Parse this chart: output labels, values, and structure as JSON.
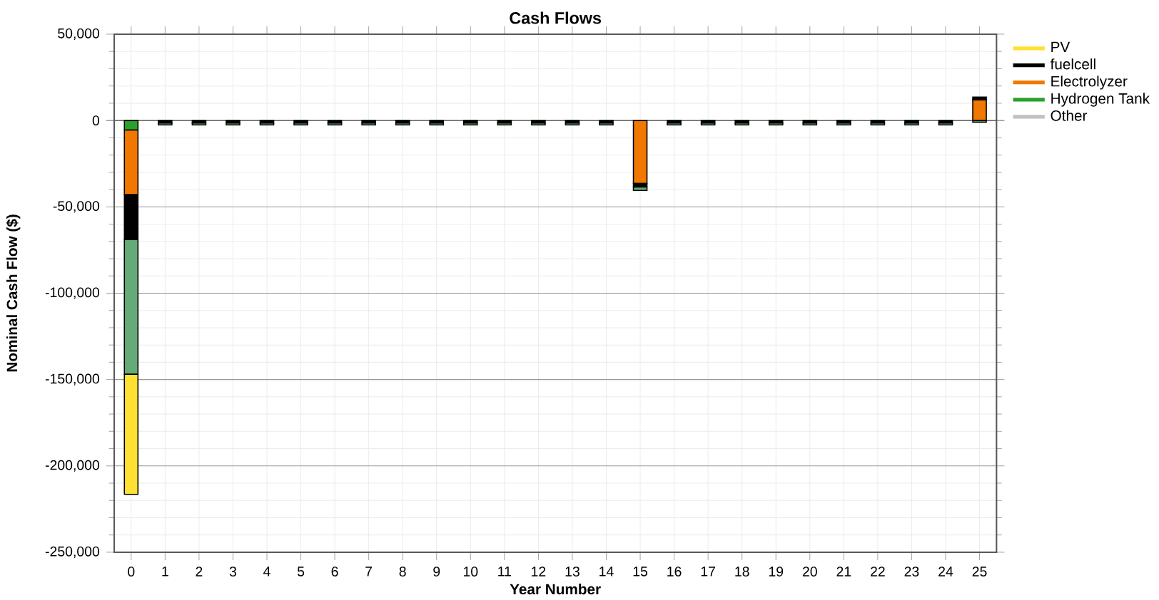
{
  "chart_data": {
    "type": "bar",
    "stacked": true,
    "title": "Cash Flows",
    "xlabel": "Year Number",
    "ylabel": "Nominal Cash Flow ($)",
    "categories": [
      "0",
      "1",
      "2",
      "3",
      "4",
      "5",
      "6",
      "7",
      "8",
      "9",
      "10",
      "11",
      "12",
      "13",
      "14",
      "15",
      "16",
      "17",
      "18",
      "19",
      "20",
      "21",
      "22",
      "23",
      "24",
      "25"
    ],
    "series": [
      {
        "name": "Other",
        "color": "#c0c0c0",
        "values": [
          0,
          0,
          0,
          0,
          0,
          0,
          0,
          0,
          0,
          0,
          0,
          0,
          0,
          0,
          0,
          0,
          0,
          0,
          0,
          0,
          0,
          0,
          0,
          0,
          0,
          0
        ]
      },
      {
        "name": "Hydrogen Tank",
        "color": "#2ca02c",
        "values": [
          -5500,
          0,
          0,
          0,
          0,
          0,
          0,
          0,
          0,
          0,
          0,
          0,
          0,
          0,
          0,
          0,
          0,
          0,
          0,
          0,
          0,
          0,
          0,
          0,
          0,
          0
        ]
      },
      {
        "name": "Electrolyzer",
        "color": "#f07800",
        "values": [
          -37500,
          0,
          0,
          0,
          0,
          0,
          0,
          0,
          0,
          0,
          0,
          0,
          0,
          0,
          0,
          -36500,
          0,
          0,
          0,
          0,
          0,
          0,
          0,
          0,
          0,
          12000
        ]
      },
      {
        "name": "fuelcell",
        "color": "#000000",
        "values": [
          -26000,
          -1500,
          -1500,
          -1500,
          -1500,
          -1500,
          -1500,
          -1500,
          -1500,
          -1500,
          -1500,
          -1500,
          -1500,
          -1500,
          -1500,
          -2000,
          -1500,
          -1500,
          -1500,
          -1500,
          -1500,
          -1500,
          -1500,
          -1500,
          -1500,
          1500
        ]
      },
      {
        "name": null,
        "color": "#66aa77",
        "values": [
          -78000,
          -1000,
          -1000,
          -1000,
          -1000,
          -1000,
          -1000,
          -1000,
          -1000,
          -1000,
          -1000,
          -1000,
          -1000,
          -1000,
          -1000,
          -2000,
          -1000,
          -1000,
          -1000,
          -1000,
          -1000,
          -1000,
          -1000,
          -1000,
          -1000,
          -1000
        ]
      },
      {
        "name": "PV",
        "color": "#ffe033",
        "values": [
          -69500,
          0,
          0,
          0,
          0,
          0,
          0,
          0,
          0,
          0,
          0,
          0,
          0,
          0,
          0,
          0,
          0,
          0,
          0,
          0,
          0,
          0,
          0,
          0,
          0,
          0
        ]
      }
    ],
    "ylim": [
      -250000,
      50000
    ],
    "yticks": [
      {
        "value": -250000,
        "label": "-250,000"
      },
      {
        "value": -200000,
        "label": "-200,000"
      },
      {
        "value": -150000,
        "label": "-150,000"
      },
      {
        "value": -100000,
        "label": "-100,000"
      },
      {
        "value": -50000,
        "label": "-50,000"
      },
      0,
      {
        "value": 50000,
        "label": "50,000"
      }
    ],
    "grid": true,
    "legend": "right"
  }
}
